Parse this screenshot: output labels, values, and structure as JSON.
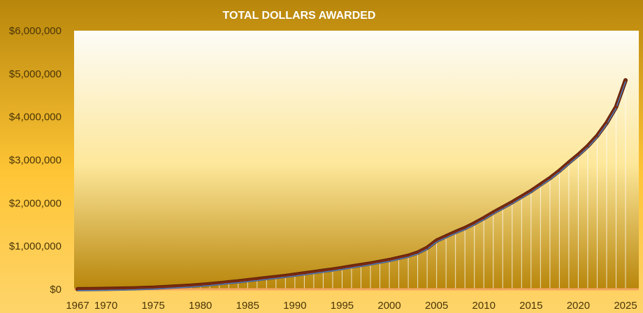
{
  "chart_data": {
    "type": "line",
    "title": "TOTAL DOLLARS AWARDED",
    "xlabel": "",
    "ylabel": "",
    "xlim": [
      1967,
      2025
    ],
    "ylim": [
      0,
      6000000
    ],
    "x_ticks": [
      "1967",
      "1970",
      "1975",
      "1980",
      "1985",
      "1990",
      "1995",
      "2000",
      "2005",
      "2010",
      "2015",
      "2020",
      "2025"
    ],
    "y_ticks": [
      "$0",
      "$1,000,000",
      "$2,000,000",
      "$3,000,000",
      "$4,000,000",
      "$5,000,000",
      "$6,000,000"
    ],
    "y_tick_values": [
      0,
      1000000,
      2000000,
      3000000,
      4000000,
      5000000,
      6000000
    ],
    "grid": false,
    "legend": "none",
    "colors": {
      "line": "#7a2a10",
      "line_highlight": "#4a7fc0",
      "drop_lines": "#ffffff",
      "frame_gold": "#b8860b",
      "baseline": "#f4a460"
    },
    "series": [
      {
        "x": [
          1967,
          1968,
          1969,
          1970,
          1971,
          1972,
          1973,
          1974,
          1975,
          1976,
          1977,
          1978,
          1979,
          1980,
          1981,
          1982,
          1983,
          1984,
          1985,
          1986,
          1987,
          1988,
          1989,
          1990,
          1991,
          1992,
          1993,
          1994,
          1995,
          1996,
          1997,
          1998,
          1999,
          2000,
          2001,
          2002,
          2003,
          2004,
          2005,
          2006,
          2007,
          2008,
          2009,
          2010,
          2011,
          2012,
          2013,
          2014,
          2015,
          2016,
          2017,
          2018,
          2019,
          2020,
          2021,
          2022,
          2023,
          2024,
          2025
        ],
        "values": [
          2000,
          4000,
          7000,
          10000,
          14000,
          18000,
          23000,
          30000,
          38000,
          48000,
          60000,
          72000,
          86000,
          100000,
          120000,
          140000,
          165000,
          185000,
          210000,
          235000,
          260000,
          285000,
          310000,
          340000,
          370000,
          400000,
          430000,
          460000,
          495000,
          530000,
          565000,
          600000,
          640000,
          680000,
          730000,
          780000,
          850000,
          960000,
          1130000,
          1230000,
          1330000,
          1420000,
          1530000,
          1650000,
          1780000,
          1900000,
          2020000,
          2150000,
          2280000,
          2430000,
          2580000,
          2750000,
          2940000,
          3120000,
          3320000,
          3560000,
          3860000,
          4230000,
          4850000
        ]
      }
    ]
  }
}
